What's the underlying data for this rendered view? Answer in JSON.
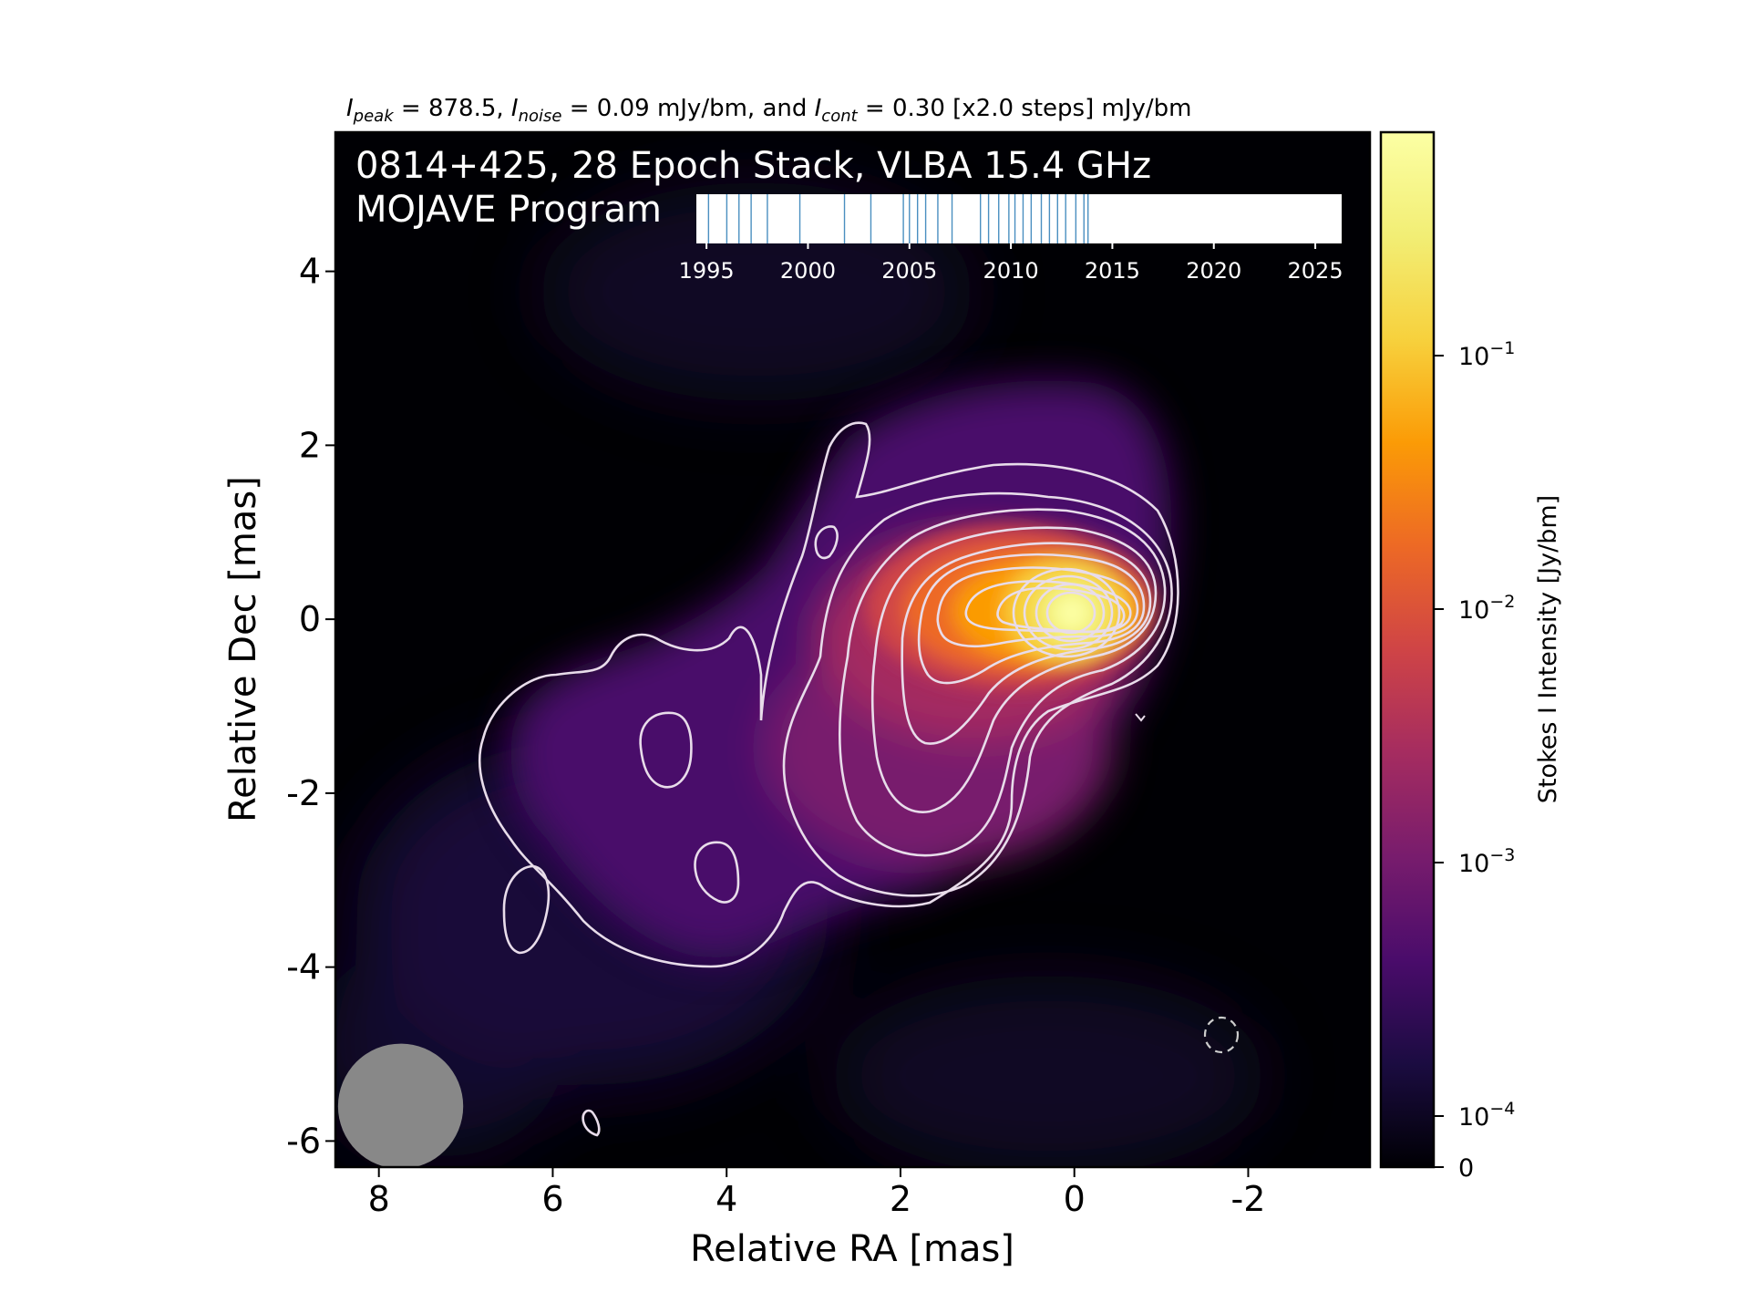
{
  "chart_data": {
    "type": "heatmap",
    "header": {
      "peak_sym": "I",
      "peak_sub": "peak",
      "peak_val": " = 878.5, ",
      "noise_sym": "I",
      "noise_sub": "noise",
      "noise_val": " = 0.09 mJy/bm, and ",
      "cont_sym": "I",
      "cont_sub": "cont",
      "cont_val": " = 0.30 [x2.0 steps] mJy/bm"
    },
    "title_line1": "0814+425, 28 Epoch Stack, VLBA 15.4 GHz",
    "title_line2": "MOJAVE Program",
    "xlabel": "Relative RA [mas]",
    "ylabel": "Relative Dec [mas]",
    "xlim": [
      8.5,
      -3.4
    ],
    "ylim": [
      -6.3,
      5.6
    ],
    "xticks": [
      8,
      6,
      4,
      2,
      0,
      -2
    ],
    "xtick_labels": [
      "8",
      "6",
      "4",
      "2",
      "0",
      "-2"
    ],
    "yticks": [
      4,
      2,
      0,
      -2,
      -4,
      -6
    ],
    "ytick_labels": [
      "4",
      "2",
      "0",
      "-2",
      "-4",
      "-6"
    ],
    "colorbar": {
      "label": "Stokes I Intensity [Jy/bm]",
      "scale": "log",
      "colormap": "inferno",
      "ticks": [
        0,
        0.0001,
        0.001,
        0.01,
        0.1
      ],
      "tick_base": [
        "0",
        "10",
        "10",
        "10",
        "10"
      ],
      "tick_exp": [
        "",
        "−4",
        "−3",
        "−2",
        "−1"
      ]
    },
    "epochs": {
      "xlim": [
        1994.5,
        2026.3
      ],
      "ticks": [
        1995,
        2000,
        2005,
        2010,
        2015,
        2020,
        2025
      ],
      "tick_labels": [
        "1995",
        "2000",
        "2005",
        "2010",
        "2015",
        "2020",
        "2025"
      ],
      "dates": [
        1995.1,
        1996.0,
        1996.6,
        1997.2,
        1998.0,
        1999.6,
        2001.8,
        2003.1,
        2004.7,
        2005.0,
        2005.4,
        2005.8,
        2006.4,
        2007.1,
        2008.5,
        2008.9,
        2009.4,
        2009.9,
        2010.2,
        2010.6,
        2011.0,
        2011.5,
        2011.9,
        2012.3,
        2012.7,
        2013.2,
        2013.6,
        2013.8
      ]
    },
    "peak_position": [
      0.0,
      0.0
    ],
    "beam": {
      "ra": 7.75,
      "dec": -5.6,
      "bmaj": 0.72,
      "bmin": 0.72
    },
    "colors": {
      "contour": "#e8dcea",
      "beam": "#888888",
      "frame": "#000000"
    }
  }
}
